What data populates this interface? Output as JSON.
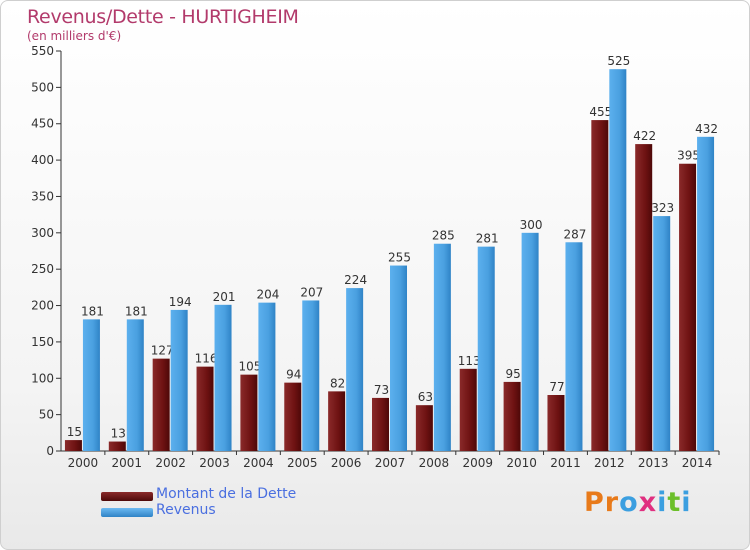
{
  "header": {
    "title": "Revenus/Dette - HURTIGHEIM",
    "subtitle": "(en milliers d'€)"
  },
  "colors": {
    "dette": "#6e1212",
    "revenus": "#4aa0e0",
    "title": "#b23a6b",
    "legend_text": "#4a6fe0"
  },
  "chart_data": {
    "type": "bar",
    "categories": [
      "2000",
      "2001",
      "2002",
      "2003",
      "2004",
      "2005",
      "2006",
      "2007",
      "2008",
      "2009",
      "2010",
      "2011",
      "2012",
      "2013",
      "2014"
    ],
    "series": [
      {
        "name": "Montant de la Dette",
        "values": [
          15,
          13,
          127,
          116,
          105,
          94,
          82,
          73,
          63,
          113,
          95,
          77,
          455,
          422,
          395
        ]
      },
      {
        "name": "Revenus",
        "values": [
          181,
          181,
          194,
          201,
          204,
          207,
          224,
          255,
          285,
          281,
          300,
          287,
          525,
          323,
          432
        ]
      }
    ],
    "ylim": [
      0,
      550
    ],
    "yticks": [
      0,
      50,
      100,
      150,
      200,
      250,
      300,
      350,
      400,
      450,
      500,
      550
    ],
    "grid": false,
    "legend_position": "bottom-left"
  },
  "legend": {
    "items": [
      {
        "label": "Montant de la Dette"
      },
      {
        "label": "Revenus"
      }
    ]
  },
  "logo": {
    "letters": [
      "P",
      "r",
      "o",
      "x",
      "i",
      "t",
      "i"
    ]
  }
}
